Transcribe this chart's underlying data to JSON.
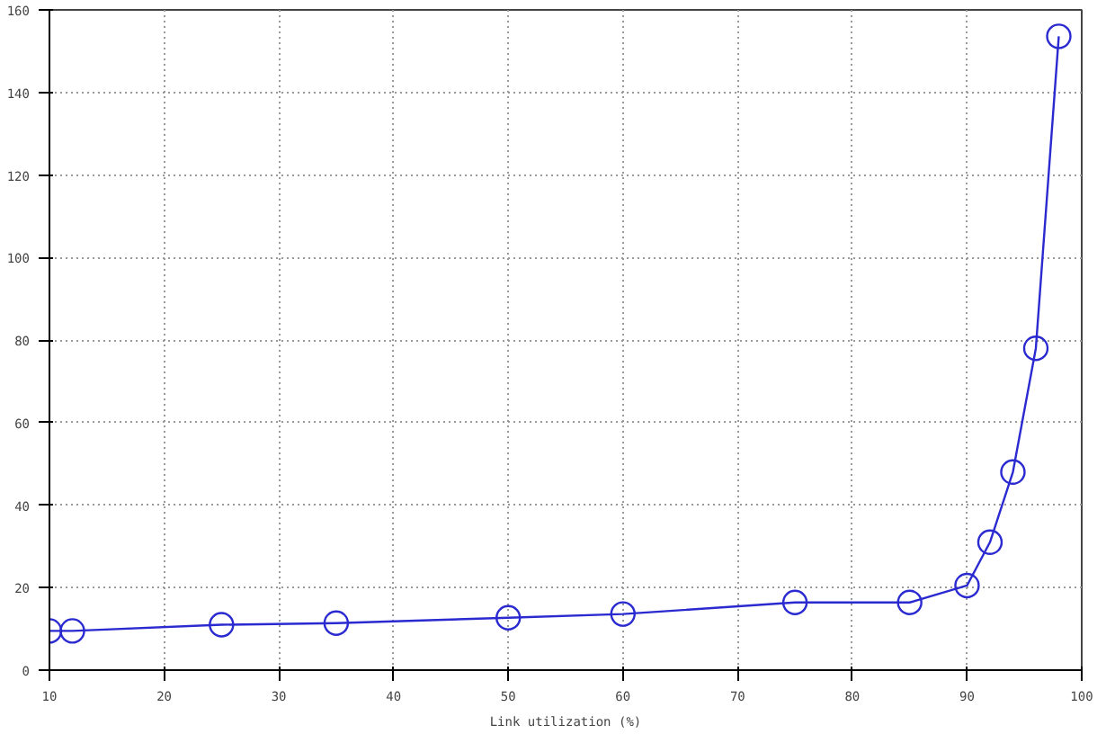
{
  "chart_data": {
    "type": "line",
    "xlabel": "Link utilization (%)",
    "x": [
      10,
      12,
      25,
      35,
      50,
      60,
      75,
      85,
      90,
      92,
      94,
      96,
      98
    ],
    "series": [
      {
        "color": "#2a2ad0",
        "values": [
          9.5,
          9.5,
          11,
          11.4,
          12.7,
          13.6,
          16.4,
          16.4,
          20.5,
          31,
          48,
          78,
          153.6
        ]
      }
    ],
    "xlim": [
      10,
      100
    ],
    "xticks": [
      10,
      20,
      30,
      40,
      50,
      60,
      70,
      80,
      90,
      100
    ],
    "ylim": [
      0,
      160
    ],
    "yticks": [
      0,
      20,
      40,
      60,
      80,
      100,
      120,
      140,
      160
    ],
    "grid": true,
    "marker": "circle",
    "line_style": "solid"
  }
}
